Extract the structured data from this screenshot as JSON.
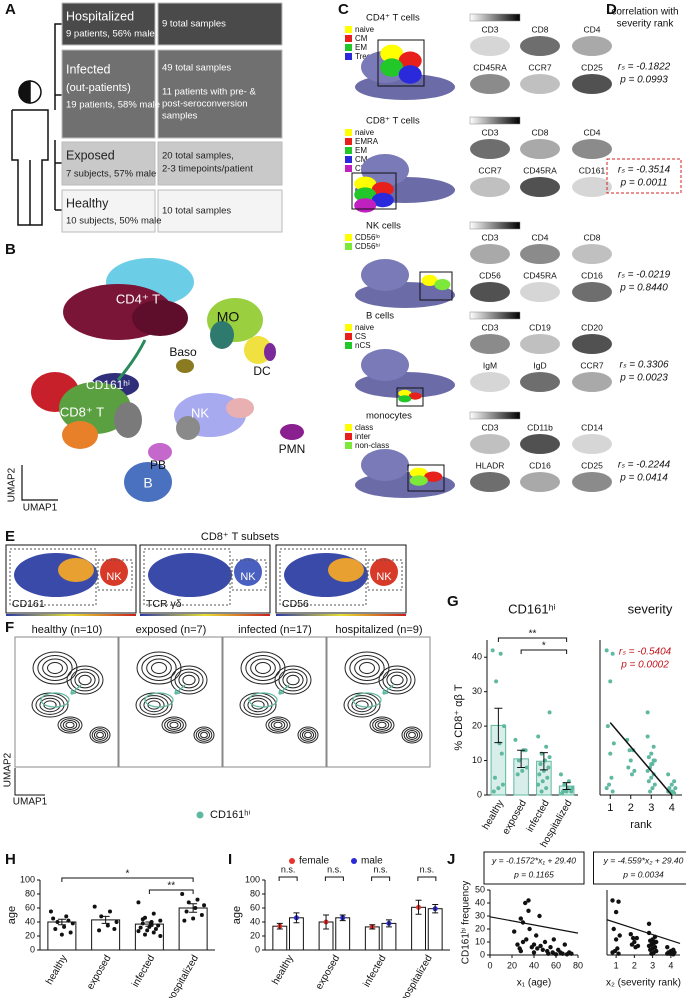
{
  "panel_labels": [
    "A",
    "B",
    "C",
    "D",
    "E",
    "F",
    "G",
    "H",
    "I",
    "J"
  ],
  "panel_a": {
    "groups": [
      {
        "name": "Hospitalized",
        "detail": "9 patients, 56% male",
        "samples": [
          "9 total samples"
        ]
      },
      {
        "name": "Infected",
        "subname": "(out-patients)",
        "detail": "19 patients, 58% male",
        "samples": [
          "49 total samples"
        ],
        "note": [
          "11 patients with pre- &",
          "post-seroconversion",
          "samples"
        ]
      },
      {
        "name": "Exposed",
        "detail": "7 subjects, 57% male",
        "samples": [
          "20 total samples,",
          "2-3 timepoints/patient"
        ]
      },
      {
        "name": "Healthy",
        "detail": "10 subjects, 50% male",
        "samples": [
          "10 total samples"
        ]
      }
    ]
  },
  "panel_b": {
    "clusters": [
      "CD4⁺ T",
      "MO",
      "Baso",
      "DC",
      "CD161ʰⁱ",
      "CD8⁺ T",
      "γδ",
      "NK",
      "PMN",
      "PB",
      "B"
    ],
    "x_axis": "UMAP1",
    "y_axis": "UMAP2"
  },
  "panel_c": {
    "rows": [
      {
        "title": "CD4⁺ T cells",
        "legend": [
          {
            "name": "naive",
            "color": "#ffff00"
          },
          {
            "name": "CM",
            "color": "#e8201c"
          },
          {
            "name": "EM",
            "color": "#22c82a"
          },
          {
            "name": "Treg",
            "color": "#2a2adc"
          }
        ],
        "markers": [
          "CD3",
          "CD8",
          "CD4",
          "CD45RA",
          "CCR7",
          "CD25"
        ]
      },
      {
        "title": "CD8⁺ T cells",
        "legend": [
          {
            "name": "naive",
            "color": "#ffff00"
          },
          {
            "name": "EMRA",
            "color": "#e8201c"
          },
          {
            "name": "EM",
            "color": "#22c82a"
          },
          {
            "name": "CM",
            "color": "#2a2adc"
          },
          {
            "name": "CD161ʰⁱ",
            "color": "#c020c0"
          }
        ],
        "markers": [
          "CD3",
          "CD8",
          "CD4",
          "CCR7",
          "CD45RA",
          "CD161"
        ]
      },
      {
        "title": "NK cells",
        "legend": [
          {
            "name": "CD56ˡᵒ",
            "color": "#ffff00"
          },
          {
            "name": "CD56ʰⁱ",
            "color": "#7ce83a"
          }
        ],
        "markers": [
          "CD3",
          "CD4",
          "CD8",
          "CD56",
          "CD45RA",
          "CD16"
        ]
      },
      {
        "title": "B cells",
        "legend": [
          {
            "name": "naive",
            "color": "#ffff00"
          },
          {
            "name": "CS",
            "color": "#e8201c"
          },
          {
            "name": "nCS",
            "color": "#22c82a"
          }
        ],
        "markers": [
          "CD3",
          "CD19",
          "CD20",
          "IgM",
          "IgD",
          "CCR7"
        ]
      },
      {
        "title": "monocytes",
        "legend": [
          {
            "name": "class",
            "color": "#ffff00"
          },
          {
            "name": "inter",
            "color": "#e8201c"
          },
          {
            "name": "non-class",
            "color": "#7ce83a"
          }
        ],
        "markers": [
          "CD3",
          "CD11b",
          "CD14",
          "HLADR",
          "CD16",
          "CD25"
        ]
      }
    ]
  },
  "panel_d": {
    "title": [
      "correlation with",
      "severity rank"
    ],
    "stats": [
      {
        "r": "rₛ = -0.1822",
        "p": "p = 0.0993"
      },
      {
        "r": "rₛ = -0.3514",
        "p": "p = 0.0011",
        "highlighted": true
      },
      {
        "r": "rₛ = -0.0219",
        "p": "p = 0.8440"
      },
      {
        "r": "rₛ = 0.3306",
        "p": "p = 0.0023"
      },
      {
        "r": "rₛ = -0.2244",
        "p": "p = 0.0414"
      }
    ]
  },
  "panel_e": {
    "title": "CD8⁺ T subsets",
    "images": [
      {
        "label": "CD161",
        "cluster": "NK"
      },
      {
        "label": "TCR γδ",
        "cluster": "NK"
      },
      {
        "label": "CD56",
        "cluster": "NK"
      }
    ]
  },
  "panel_f": {
    "panels": [
      "healthy (n=10)",
      "exposed (n=7)",
      "infected (n=17)",
      "hospitalized (n=9)"
    ],
    "x_axis": "UMAP1",
    "y_axis": "UMAP2",
    "legend": "CD161ʰⁱ",
    "legend_color": "#5fb8a0"
  },
  "panel_g": {
    "bars": {
      "type": "bar",
      "title": "CD161ʰⁱ",
      "ylabel": "% CD8⁺ αβ T",
      "categories": [
        "healthy",
        "exposed",
        "infected",
        "hospitalized"
      ],
      "values": [
        20.2,
        10.5,
        9.8,
        2.6
      ],
      "errors": [
        5,
        2.5,
        2.5,
        1
      ],
      "ylim": [
        0,
        45
      ],
      "yticks": [
        0,
        10,
        20,
        30,
        40
      ],
      "color": "#5fb8a0",
      "fill": "#d8efe9",
      "points": [
        [
          42,
          41,
          33,
          20,
          15,
          5,
          3,
          2,
          1,
          12
        ],
        [
          16,
          13,
          10,
          8,
          7,
          6,
          13
        ],
        [
          17,
          14,
          12,
          11,
          10,
          9,
          8,
          7,
          6,
          5,
          4,
          3,
          2,
          1,
          24,
          10,
          9
        ],
        [
          6,
          4,
          3,
          2,
          2,
          1,
          1,
          1,
          0.5
        ]
      ],
      "significance": [
        {
          "label": "**",
          "from": 0,
          "to": 3
        },
        {
          "label": "*",
          "from": 1,
          "to": 3
        }
      ]
    },
    "severity": {
      "type": "scatter",
      "title": "severity",
      "xlabel": "rank",
      "xlim": [
        0.5,
        4.5
      ],
      "xticks": [
        1,
        2,
        3,
        4
      ],
      "stats": [
        "rₛ = -0.5404",
        "p = 0.0002"
      ],
      "stats_color": "#c0141c",
      "trend_line": {
        "x": [
          1,
          4
        ],
        "y": [
          21,
          0
        ]
      }
    }
  },
  "panel_h": {
    "type": "bar",
    "ylabel": "age",
    "categories": [
      "healthy",
      "exposed",
      "infected",
      "hospitalized"
    ],
    "values": [
      40,
      43,
      37,
      60
    ],
    "errors": [
      4,
      5,
      3,
      6
    ],
    "ylim": [
      0,
      100
    ],
    "yticks": [
      0,
      20,
      40,
      60,
      80,
      100
    ],
    "color": "#111111",
    "fill": "#ffffff",
    "points": [
      [
        55,
        48,
        40,
        38,
        33,
        30,
        25,
        22,
        45,
        42
      ],
      [
        62,
        55,
        48,
        40,
        35,
        28,
        30
      ],
      [
        68,
        52,
        46,
        42,
        40,
        38,
        35,
        33,
        32,
        30,
        28,
        27,
        25,
        22,
        20,
        36,
        44
      ],
      [
        80,
        72,
        68,
        64,
        60,
        55,
        50,
        45,
        42
      ]
    ],
    "significance": [
      {
        "label": "*",
        "from": 0,
        "to": 3
      },
      {
        "label": "**",
        "from": 2,
        "to": 3
      }
    ]
  },
  "panel_i": {
    "type": "grouped_bar",
    "ylabel": "age",
    "categories": [
      "healthy",
      "exposed",
      "infected",
      "hospitalized"
    ],
    "ylim": [
      0,
      100
    ],
    "yticks": [
      0,
      20,
      40,
      60,
      80,
      100
    ],
    "series": [
      {
        "name": "female",
        "color": "#e8322c",
        "values": [
          34,
          40,
          33,
          61
        ],
        "errors": [
          4,
          10,
          3,
          10
        ]
      },
      {
        "name": "male",
        "color": "#2a2ad8",
        "values": [
          46,
          46,
          38,
          59
        ],
        "errors": [
          7,
          4,
          5,
          6
        ]
      }
    ],
    "annotations": [
      "n.s.",
      "n.s.",
      "n.s.",
      "n.s."
    ]
  },
  "panel_j": {
    "age": {
      "type": "scatter",
      "equation": "y = -0.1572*x₁ + 29.40",
      "p": "p = 0.1165",
      "ylabel": "CD161ʰⁱ frequency",
      "xlabel": "x₁ (age)",
      "xlim": [
        0,
        80
      ],
      "xticks": [
        0,
        20,
        40,
        60,
        80
      ],
      "ylim": [
        0,
        50
      ],
      "yticks": [
        0,
        10,
        20,
        30,
        40,
        50
      ],
      "x": [
        22,
        25,
        27,
        28,
        30,
        30,
        32,
        33,
        35,
        36,
        38,
        40,
        40,
        42,
        43,
        45,
        46,
        48,
        50,
        52,
        53,
        55,
        57,
        58,
        60,
        62,
        64,
        66,
        68,
        70,
        72,
        74,
        35,
        28
      ],
      "y": [
        18,
        8,
        5,
        3,
        25,
        10,
        40,
        12,
        42,
        20,
        6,
        8,
        2,
        15,
        5,
        30,
        7,
        4,
        10,
        3,
        1,
        6,
        2,
        12,
        0.5,
        4,
        2,
        1,
        8,
        0.5,
        2,
        1,
        34,
        28
      ],
      "line": {
        "slope": -0.1572,
        "intercept": 29.4
      }
    },
    "rank": {
      "type": "scatter",
      "equation": "y = -4.559*x₂ + 29.40",
      "p": "p = 0.0034",
      "xlabel": "x₂ (severity rank)",
      "xlim": [
        0.5,
        4.5
      ],
      "xticks": [
        1,
        2,
        3,
        4
      ],
      "ylim": [
        0,
        50
      ],
      "line": {
        "slope": -4.559,
        "intercept": 29.4
      }
    }
  }
}
